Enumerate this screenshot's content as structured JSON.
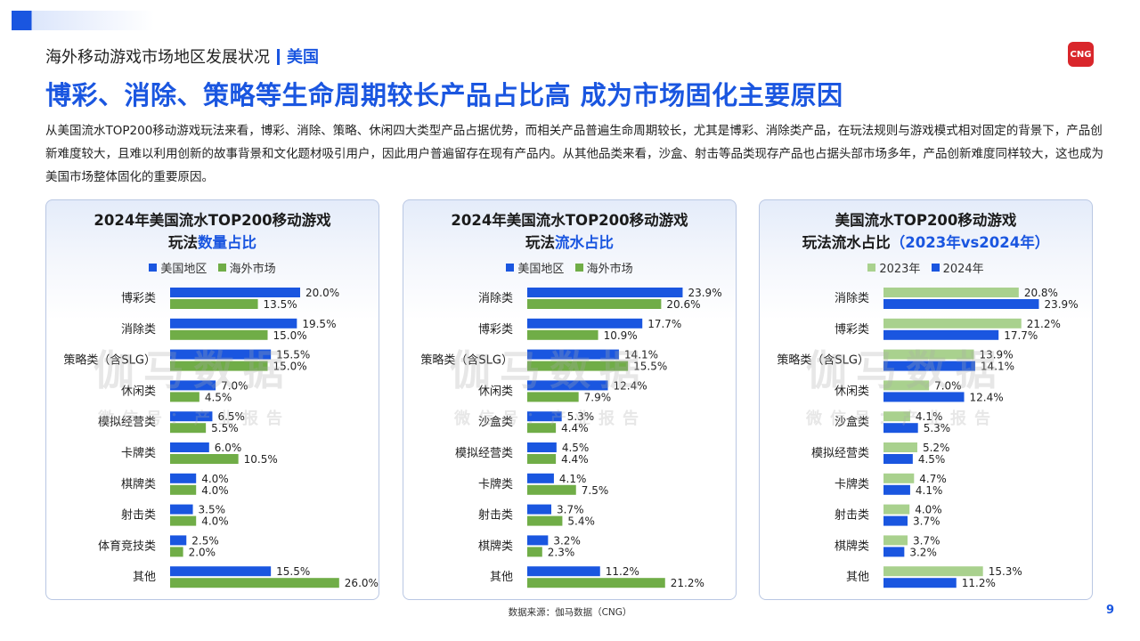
{
  "header": {
    "breadcrumb": "海外移动游戏市场地区发展状况",
    "region": "美国",
    "logo_text": "CNG",
    "headline": "博彩、消除、策略等生命周期较长产品占比高 成为市场固化主要原因",
    "intro": "从美国流水TOP200移动游戏玩法来看，博彩、消除、策略、休闲四大类型产品占据优势，而相关产品普遍生命周期较长，尤其是博彩、消除类产品，在玩法规则与游戏模式相对固定的背景下，产品创新难度较大，且难以利用创新的故事背景和文化题材吸引用户，因此用户普遍留存在现有产品内。从其他品类来看，沙盒、射击等品类现存产品也占据头部市场多年，产品创新难度同样较大，这也成为美国市场整体固化的重要原因。"
  },
  "watermark": {
    "main": "伽马数据",
    "sub": "微信号：产业报告"
  },
  "colors": {
    "blue": "#1a56e0",
    "green": "#70ad47",
    "light_green": "#a9d18e"
  },
  "chart_data": [
    {
      "type": "bar",
      "orientation": "horizontal",
      "title_line1": "2024年美国流水TOP200移动游戏",
      "title_line2_prefix": "玩法",
      "title_line2_highlight": "数量占比",
      "title_line2_suffix": "",
      "categories": [
        "博彩类",
        "消除类",
        "策略类（含SLG）",
        "休闲类",
        "模拟经营类",
        "卡牌类",
        "棋牌类",
        "射击类",
        "体育竞技类",
        "其他"
      ],
      "series": [
        {
          "name": "美国地区",
          "color": "#1a56e0",
          "values": [
            20.0,
            19.5,
            15.5,
            7.0,
            6.5,
            6.0,
            4.0,
            3.5,
            2.5,
            15.5
          ]
        },
        {
          "name": "海外市场",
          "color": "#70ad47",
          "values": [
            13.5,
            15.0,
            15.0,
            4.5,
            5.5,
            10.5,
            4.0,
            4.0,
            2.0,
            26.0
          ]
        }
      ],
      "value_suffix": "%",
      "legend": "top"
    },
    {
      "type": "bar",
      "orientation": "horizontal",
      "title_line1": "2024年美国流水TOP200移动游戏",
      "title_line2_prefix": "玩法",
      "title_line2_highlight": "流水占比",
      "title_line2_suffix": "",
      "categories": [
        "消除类",
        "博彩类",
        "策略类（含SLG）",
        "休闲类",
        "沙盒类",
        "模拟经营类",
        "卡牌类",
        "射击类",
        "棋牌类",
        "其他"
      ],
      "series": [
        {
          "name": "美国地区",
          "color": "#1a56e0",
          "values": [
            23.9,
            17.7,
            14.1,
            12.4,
            5.3,
            4.5,
            4.1,
            3.7,
            3.2,
            11.2
          ]
        },
        {
          "name": "海外市场",
          "color": "#70ad47",
          "values": [
            20.6,
            10.9,
            15.5,
            7.9,
            4.4,
            4.4,
            7.5,
            5.4,
            2.3,
            21.2
          ]
        }
      ],
      "value_suffix": "%",
      "legend": "top"
    },
    {
      "type": "bar",
      "orientation": "horizontal",
      "title_line1": "美国流水TOP200移动游戏",
      "title_line2_prefix": "玩法流水占比",
      "title_line2_highlight": "（2023年vs2024年）",
      "title_line2_suffix": "",
      "categories": [
        "消除类",
        "博彩类",
        "策略类（含SLG）",
        "休闲类",
        "沙盒类",
        "模拟经营类",
        "卡牌类",
        "射击类",
        "棋牌类",
        "其他"
      ],
      "series": [
        {
          "name": "2023年",
          "color": "#a9d18e",
          "values": [
            20.8,
            21.2,
            13.9,
            7.0,
            4.1,
            5.2,
            4.7,
            4.0,
            3.7,
            15.3
          ]
        },
        {
          "name": "2024年",
          "color": "#1a56e0",
          "values": [
            23.9,
            17.7,
            14.1,
            12.4,
            5.3,
            4.5,
            4.1,
            3.7,
            3.2,
            11.2
          ]
        }
      ],
      "value_suffix": "%",
      "legend": "top"
    }
  ],
  "footer": {
    "source": "数据来源：伽马数据（CNG）",
    "page": "9"
  }
}
